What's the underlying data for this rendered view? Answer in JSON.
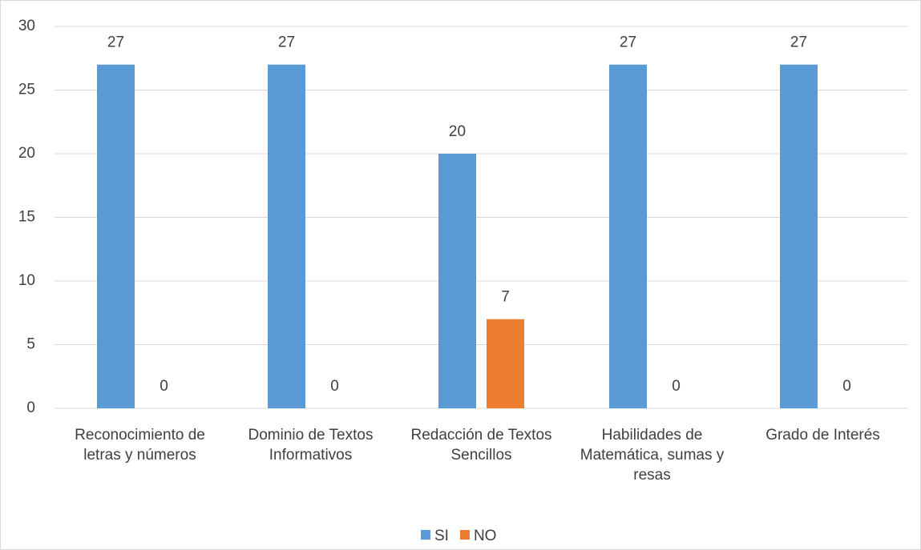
{
  "chart_data": {
    "type": "bar",
    "categories": [
      "Reconocimiento de letras y números",
      "Dominio de Textos Informativos",
      "Redacción de Textos Sencillos",
      "Habilidades de Matemática, sumas y resas",
      "Grado de Interés"
    ],
    "series": [
      {
        "name": "SI",
        "color": "#5b9bd5",
        "values": [
          27,
          27,
          20,
          27,
          27
        ]
      },
      {
        "name": "NO",
        "color": "#ed7d31",
        "values": [
          0,
          0,
          7,
          0,
          0
        ]
      }
    ],
    "ylim": [
      0,
      30
    ],
    "yticks": [
      0,
      5,
      10,
      15,
      20,
      25,
      30
    ],
    "grid": true,
    "legend": "bottom"
  }
}
